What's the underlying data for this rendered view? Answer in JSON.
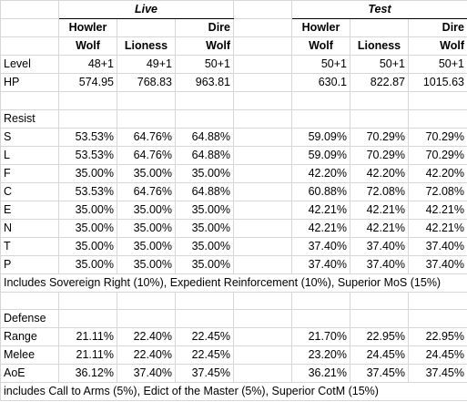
{
  "groups": {
    "live": "Live",
    "test": "Test"
  },
  "columns": {
    "live": [
      {
        "line1": "Howler",
        "line2": "Wolf"
      },
      {
        "line1": "",
        "line2": "Lioness"
      },
      {
        "line1": "Dire",
        "line2": "Wolf"
      }
    ],
    "test": [
      {
        "line1": "Howler",
        "line2": "Wolf"
      },
      {
        "line1": "",
        "line2": "Lioness"
      },
      {
        "line1": "Dire",
        "line2": "Wolf"
      }
    ]
  },
  "stats": [
    {
      "label": "Level",
      "live": [
        "48+1",
        "49+1",
        "50+1"
      ],
      "test": [
        "50+1",
        "50+1",
        "50+1"
      ]
    },
    {
      "label": "HP",
      "live": [
        "574.95",
        "768.83",
        "963.81"
      ],
      "test": [
        "630.1",
        "822.87",
        "1015.63"
      ]
    }
  ],
  "resist": {
    "title": "Resist",
    "rows": [
      {
        "label": "S",
        "live": [
          "53.53%",
          "64.76%",
          "64.88%"
        ],
        "test": [
          "59.09%",
          "70.29%",
          "70.29%"
        ]
      },
      {
        "label": "L",
        "live": [
          "53.53%",
          "64.76%",
          "64.88%"
        ],
        "test": [
          "59.09%",
          "70.29%",
          "70.29%"
        ]
      },
      {
        "label": "F",
        "live": [
          "35.00%",
          "35.00%",
          "35.00%"
        ],
        "test": [
          "42.20%",
          "42.20%",
          "42.20%"
        ]
      },
      {
        "label": "C",
        "live": [
          "53.53%",
          "64.76%",
          "64.88%"
        ],
        "test": [
          "60.88%",
          "72.08%",
          "72.08%"
        ]
      },
      {
        "label": "E",
        "live": [
          "35.00%",
          "35.00%",
          "35.00%"
        ],
        "test": [
          "42.21%",
          "42.21%",
          "42.21%"
        ]
      },
      {
        "label": "N",
        "live": [
          "35.00%",
          "35.00%",
          "35.00%"
        ],
        "test": [
          "42.21%",
          "42.21%",
          "42.21%"
        ]
      },
      {
        "label": "T",
        "live": [
          "35.00%",
          "35.00%",
          "35.00%"
        ],
        "test": [
          "37.40%",
          "37.40%",
          "37.40%"
        ]
      },
      {
        "label": "P",
        "live": [
          "35.00%",
          "35.00%",
          "35.00%"
        ],
        "test": [
          "37.40%",
          "37.40%",
          "37.40%"
        ]
      }
    ],
    "note": "Includes Sovereign Right (10%), Expedient Reinforcement (10%), Superior MoS (15%)"
  },
  "defense": {
    "title": "Defense",
    "rows": [
      {
        "label": "Range",
        "live": [
          "21.11%",
          "22.40%",
          "22.45%"
        ],
        "test": [
          "21.70%",
          "22.95%",
          "22.95%"
        ]
      },
      {
        "label": "Melee",
        "live": [
          "21.11%",
          "22.40%",
          "22.45%"
        ],
        "test": [
          "23.20%",
          "24.45%",
          "24.45%"
        ]
      },
      {
        "label": "AoE",
        "live": [
          "36.12%",
          "37.40%",
          "37.45%"
        ],
        "test": [
          "36.21%",
          "37.45%",
          "37.45%"
        ]
      }
    ],
    "note": "includes Call to Arms (5%), Edict of the Master (5%), Superior CotM (15%)"
  }
}
